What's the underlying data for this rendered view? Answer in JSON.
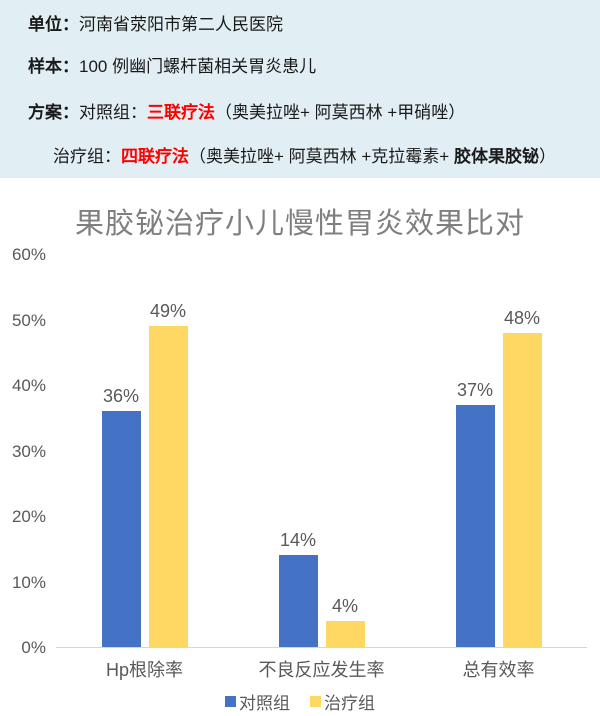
{
  "header": {
    "bg_color": "#E1EEF3",
    "red_color": "#FF0000",
    "lines": {
      "unit": {
        "label": "单位：",
        "text": "河南省荥阳市第二人民医院"
      },
      "sample": {
        "label": "样本：",
        "text": "100 例幽门螺杆菌相关胃炎患儿"
      },
      "plan": {
        "label": "方案：",
        "group": "对照组：",
        "therapy": "三联疗法",
        "drugs": "（奥美拉唑+ 阿莫西林 +甲硝唑）"
      },
      "treat": {
        "group": "治疗组：",
        "therapy": "四联疗法",
        "drugs": "（奥美拉唑+ 阿莫西林 +克拉霉素+ ",
        "bold_drug": "胶体果胶铋",
        "close": "）"
      }
    }
  },
  "chart_data": {
    "type": "bar",
    "title": "果胶铋治疗小儿慢性胃炎效果比对",
    "title_color": "#7F7F7F",
    "categories": [
      "Hp根除率",
      "不良反应发生率",
      "总有效率"
    ],
    "series": [
      {
        "name": "对照组",
        "color": "#4472C4",
        "values": [
          36,
          14,
          37
        ]
      },
      {
        "name": "治疗组",
        "color": "#FFD763",
        "values": [
          49,
          4,
          48
        ]
      }
    ],
    "value_suffix": "%",
    "xlabel": "",
    "ylabel": "",
    "ylim": [
      0,
      60
    ],
    "ytick_step": 10,
    "ytick_labels": [
      "0%",
      "10%",
      "20%",
      "30%",
      "40%",
      "50%",
      "60%"
    ],
    "grid": false,
    "axis_line_color": "#D6D6D6",
    "label_color": "#595959",
    "legend_position": "bottom"
  }
}
